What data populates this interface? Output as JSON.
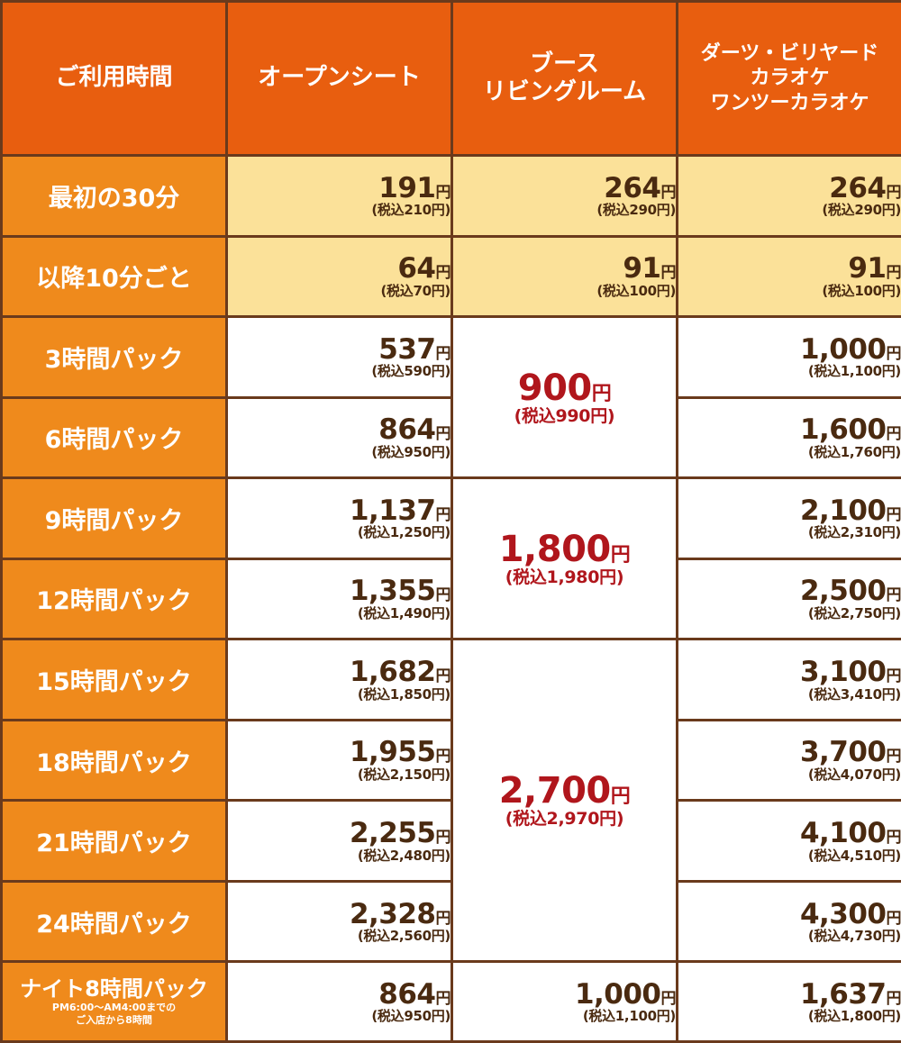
{
  "headers": {
    "time": "ご利用時間",
    "open": "オープンシート",
    "booth_line1": "ブース",
    "booth_line2": "リビングルーム",
    "darts_line1": "ダーツ・ビリヤード",
    "darts_line2": "カラオケ",
    "darts_line3": "ワンツーカラオケ"
  },
  "yen": "円",
  "rows": [
    {
      "label": "最初の30分",
      "open": {
        "price": "191",
        "tax": "(税込210円)"
      },
      "booth": {
        "price": "264",
        "tax": "(税込290円)"
      },
      "darts": {
        "price": "264",
        "tax": "(税込290円)"
      }
    },
    {
      "label": "以降10分ごと",
      "open": {
        "price": "64",
        "tax": "(税込70円)"
      },
      "booth": {
        "price": "91",
        "tax": "(税込100円)"
      },
      "darts": {
        "price": "91",
        "tax": "(税込100円)"
      }
    },
    {
      "label": "3時間パック",
      "open": {
        "price": "537",
        "tax": "(税込590円)"
      },
      "darts": {
        "price": "1,000",
        "tax": "(税込1,100円)"
      }
    },
    {
      "label": "6時間パック",
      "open": {
        "price": "864",
        "tax": "(税込950円)"
      },
      "darts": {
        "price": "1,600",
        "tax": "(税込1,760円)"
      }
    },
    {
      "label": "9時間パック",
      "open": {
        "price": "1,137",
        "tax": "(税込1,250円)"
      },
      "darts": {
        "price": "2,100",
        "tax": "(税込2,310円)"
      }
    },
    {
      "label": "12時間パック",
      "open": {
        "price": "1,355",
        "tax": "(税込1,490円)"
      },
      "darts": {
        "price": "2,500",
        "tax": "(税込2,750円)"
      }
    },
    {
      "label": "15時間パック",
      "open": {
        "price": "1,682",
        "tax": "(税込1,850円)"
      },
      "darts": {
        "price": "3,100",
        "tax": "(税込3,410円)"
      }
    },
    {
      "label": "18時間パック",
      "open": {
        "price": "1,955",
        "tax": "(税込2,150円)"
      },
      "darts": {
        "price": "3,700",
        "tax": "(税込4,070円)"
      }
    },
    {
      "label": "21時間パック",
      "open": {
        "price": "2,255",
        "tax": "(税込2,480円)"
      },
      "darts": {
        "price": "4,100",
        "tax": "(税込4,510円)"
      }
    },
    {
      "label": "24時間パック",
      "open": {
        "price": "2,328",
        "tax": "(税込2,560円)"
      },
      "darts": {
        "price": "4,300",
        "tax": "(税込4,730円)"
      }
    },
    {
      "label": "ナイト8時間パック",
      "note_line1": "PM6:00～AM4:00までの",
      "note_line2": "ご入店から8時間",
      "open": {
        "price": "864",
        "tax": "(税込950円)"
      },
      "booth": {
        "price": "1,000",
        "tax": "(税込1,100円)"
      },
      "darts": {
        "price": "1,637",
        "tax": "(税込1,800円)"
      }
    }
  ],
  "booth_merged": [
    {
      "price": "900",
      "tax": "(税込990円)"
    },
    {
      "price": "1,800",
      "tax": "(税込1,980円)"
    },
    {
      "price": "2,700",
      "tax": "(税込2,970円)"
    }
  ],
  "colors": {
    "header_bg": "#e85e0f",
    "row_header_bg": "#ef8a1c",
    "highlight_bg": "#fbe199",
    "border": "#6a3a1c",
    "price_text": "#4a2a10",
    "accent_price": "#b0161c"
  }
}
